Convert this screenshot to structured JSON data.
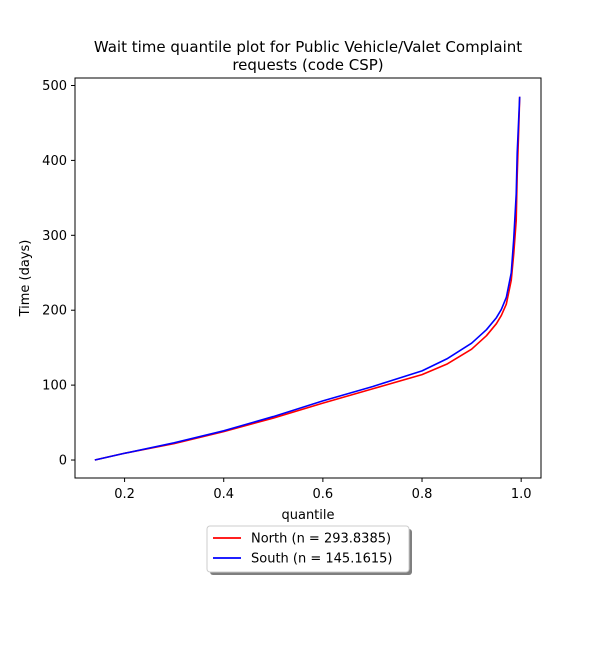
{
  "chart_data": {
    "type": "line",
    "title_lines": [
      "Wait time quantile plot for Public Vehicle/Valet Complaint",
      "requests (code CSP)"
    ],
    "xlabel": "quantile",
    "ylabel": "Time (days)",
    "xlim": [
      0.1,
      1.04
    ],
    "ylim": [
      -24,
      510
    ],
    "xticks": [
      0.2,
      0.4,
      0.6,
      0.8,
      1.0
    ],
    "xtick_labels": [
      "0.2",
      "0.4",
      "0.6",
      "0.8",
      "1.0"
    ],
    "yticks": [
      0,
      100,
      200,
      300,
      400,
      500
    ],
    "ytick_labels": [
      "0",
      "100",
      "200",
      "300",
      "400",
      "500"
    ],
    "grid": false,
    "legend_placement": "below plot, centered",
    "series": [
      {
        "name": "North (n = 293.8385)",
        "color": "#ff0000",
        "x": [
          0.14,
          0.2,
          0.3,
          0.4,
          0.5,
          0.6,
          0.7,
          0.8,
          0.85,
          0.9,
          0.93,
          0.95,
          0.96,
          0.97,
          0.98,
          0.985,
          0.99,
          0.992,
          0.995,
          0.997
        ],
        "y": [
          0,
          9,
          22,
          38,
          56,
          76,
          95,
          114,
          128,
          148,
          166,
          182,
          193,
          208,
          240,
          275,
          320,
          380,
          440,
          485
        ]
      },
      {
        "name": "South (n = 145.1615)",
        "color": "#0000ff",
        "x": [
          0.14,
          0.2,
          0.3,
          0.4,
          0.5,
          0.6,
          0.7,
          0.8,
          0.85,
          0.9,
          0.93,
          0.95,
          0.96,
          0.97,
          0.98,
          0.985,
          0.99,
          0.992,
          0.995,
          0.997
        ],
        "y": [
          0,
          9,
          23,
          39,
          58,
          79,
          98,
          119,
          135,
          156,
          174,
          190,
          201,
          217,
          250,
          295,
          355,
          410,
          455,
          485
        ]
      }
    ]
  }
}
